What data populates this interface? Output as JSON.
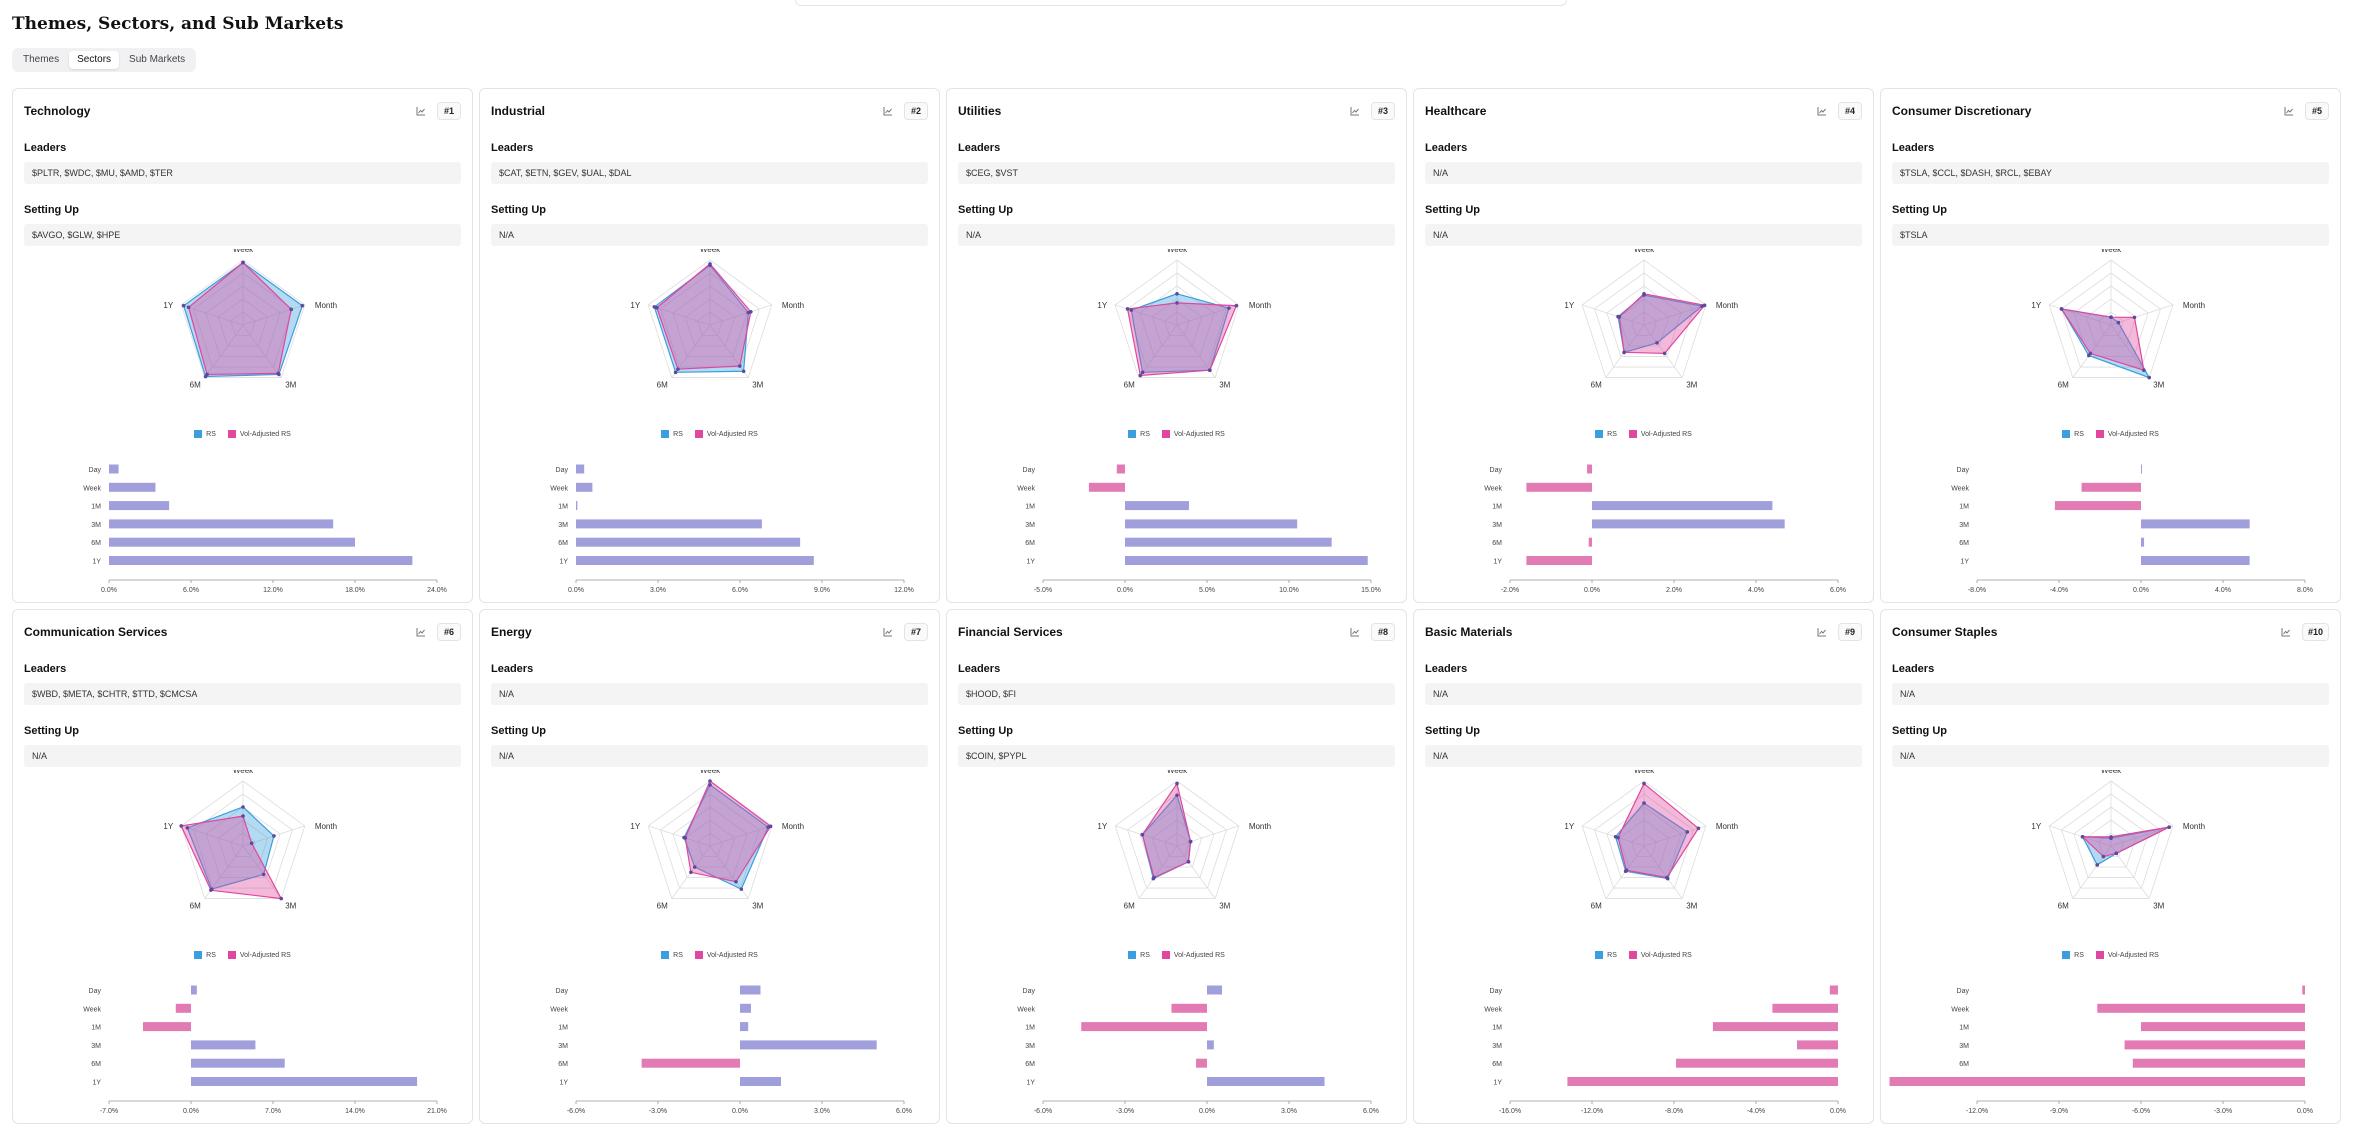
{
  "page": {
    "title": "Themes, Sectors, and Sub Markets",
    "tabs": [
      "Themes",
      "Sectors",
      "Sub Markets"
    ],
    "active_tab": "Sectors"
  },
  "labels": {
    "leaders": "Leaders",
    "setting_up": "Setting Up"
  },
  "legend": {
    "rs": "RS",
    "vol": "Vol-Adjusted RS"
  },
  "colors": {
    "rs": "#3b9ede",
    "vol": "#e0479e",
    "overlap": "#9b8fd4",
    "bar_positive": "#a09fdb",
    "bar_negative": "#e27ab4",
    "grid": "#dddddd",
    "card_border": "#e4e4e7"
  },
  "icons": {
    "chart_button": "line-chart-icon"
  },
  "chart_data": [
    {
      "type": "radar+bar",
      "title": "Technology",
      "rank": "#1",
      "leaders": "$PLTR, $WDC, $MU, $AMD, $TER",
      "setting_up": "$AVGO, $GLW, $HPE",
      "radar_axes": [
        "Week",
        "Month",
        "3M",
        "6M",
        "1Y"
      ],
      "radar_series": [
        {
          "name": "RS",
          "values": [
            0.96,
            0.96,
            0.94,
            0.98,
            0.96
          ]
        },
        {
          "name": "Vol-Adjusted RS",
          "values": [
            0.96,
            0.78,
            0.92,
            0.94,
            0.88
          ]
        }
      ],
      "bar_categories": [
        "Day",
        "Week",
        "1M",
        "3M",
        "6M",
        "1Y"
      ],
      "bar_values": [
        0.7,
        3.4,
        4.4,
        16.4,
        18.0,
        22.2
      ],
      "x_ticks": [
        "0.0%",
        "6.0%",
        "12.0%",
        "18.0%",
        "24.0%"
      ],
      "xlim": [
        0,
        24
      ]
    },
    {
      "type": "radar+bar",
      "title": "Industrial",
      "rank": "#2",
      "leaders": "$CAT, $ETN, $GEV, $UAL, $DAL",
      "setting_up": "N/A",
      "radar_axes": [
        "Week",
        "Month",
        "3M",
        "6M",
        "1Y"
      ],
      "radar_series": [
        {
          "name": "RS",
          "values": [
            0.92,
            0.62,
            0.88,
            0.9,
            0.9
          ]
        },
        {
          "name": "Vol-Adjusted RS",
          "values": [
            0.94,
            0.66,
            0.78,
            0.84,
            0.86
          ]
        }
      ],
      "bar_categories": [
        "Day",
        "Week",
        "1M",
        "3M",
        "6M",
        "1Y"
      ],
      "bar_values": [
        0.3,
        0.6,
        0.05,
        6.8,
        8.2,
        8.7
      ],
      "x_ticks": [
        "0.0%",
        "3.0%",
        "6.0%",
        "9.0%",
        "12.0%"
      ],
      "xlim": [
        0,
        12
      ]
    },
    {
      "type": "radar+bar",
      "title": "Utilities",
      "rank": "#3",
      "leaders": "$CEG, $VST",
      "setting_up": "N/A",
      "radar_axes": [
        "Week",
        "Month",
        "3M",
        "6M",
        "1Y"
      ],
      "radar_series": [
        {
          "name": "RS",
          "values": [
            0.48,
            0.84,
            0.86,
            0.9,
            0.74
          ]
        },
        {
          "name": "Vol-Adjusted RS",
          "values": [
            0.34,
            0.96,
            0.86,
            0.96,
            0.8
          ]
        }
      ],
      "bar_categories": [
        "Day",
        "Week",
        "1M",
        "3M",
        "6M",
        "1Y"
      ],
      "bar_values": [
        -0.5,
        -2.2,
        3.9,
        10.5,
        12.6,
        14.8
      ],
      "x_ticks": [
        "-5.0%",
        "0.0%",
        "5.0%",
        "10.0%",
        "15.0%"
      ],
      "xlim": [
        -5,
        15
      ]
    },
    {
      "type": "radar+bar",
      "title": "Healthcare",
      "rank": "#4",
      "leaders": "N/A",
      "setting_up": "N/A",
      "radar_axes": [
        "Week",
        "Month",
        "3M",
        "6M",
        "1Y"
      ],
      "radar_series": [
        {
          "name": "RS",
          "values": [
            0.46,
            0.94,
            0.34,
            0.52,
            0.42
          ]
        },
        {
          "name": "Vol-Adjusted RS",
          "values": [
            0.48,
            0.98,
            0.54,
            0.52,
            0.4
          ]
        }
      ],
      "bar_categories": [
        "Day",
        "Week",
        "1M",
        "3M",
        "6M",
        "1Y"
      ],
      "bar_values": [
        -0.12,
        -1.6,
        4.4,
        4.7,
        -0.08,
        -1.6
      ],
      "x_ticks": [
        "-2.0%",
        "0.0%",
        "2.0%",
        "4.0%",
        "6.0%"
      ],
      "xlim": [
        -2,
        6
      ]
    },
    {
      "type": "radar+bar",
      "title": "Consumer Discretionary",
      "rank": "#5",
      "leaders": "$TSLA, $CCL, $DASH, $RCL, $EBAY",
      "setting_up": "$TSLA",
      "radar_axes": [
        "Week",
        "Month",
        "3M",
        "6M",
        "1Y"
      ],
      "radar_series": [
        {
          "name": "RS",
          "values": [
            0.12,
            0.12,
            1.0,
            0.58,
            0.8
          ]
        },
        {
          "name": "Vol-Adjusted RS",
          "values": [
            0.12,
            0.38,
            0.86,
            0.54,
            0.8
          ]
        }
      ],
      "bar_categories": [
        "Day",
        "Week",
        "1M",
        "3M",
        "6M",
        "1Y"
      ],
      "bar_values": [
        0,
        -2.9,
        -4.2,
        5.3,
        0.15,
        5.3
      ],
      "x_ticks": [
        "-8.0%",
        "-4.0%",
        "0.0%",
        "4.0%",
        "8.0%"
      ],
      "xlim": [
        -8,
        8
      ]
    },
    {
      "type": "radar+bar",
      "title": "Communication Services",
      "rank": "#6",
      "leaders": "$WBD, $META, $CHTR, $TTD, $CMCSA",
      "setting_up": "N/A",
      "radar_axes": [
        "Week",
        "Month",
        "3M",
        "6M",
        "1Y"
      ],
      "radar_series": [
        {
          "name": "RS",
          "values": [
            0.6,
            0.5,
            0.54,
            0.82,
            0.9
          ]
        },
        {
          "name": "Vol-Adjusted RS",
          "values": [
            0.46,
            0.14,
            1.0,
            0.84,
            1.0
          ]
        }
      ],
      "bar_categories": [
        "Day",
        "Week",
        "1M",
        "3M",
        "6M",
        "1Y"
      ],
      "bar_values": [
        0.5,
        -1.3,
        -4.1,
        5.5,
        8.0,
        19.3
      ],
      "x_ticks": [
        "-7.0%",
        "0.0%",
        "7.0%",
        "14.0%",
        "21.0%"
      ],
      "xlim": [
        -7,
        21
      ]
    },
    {
      "type": "radar+bar",
      "title": "Energy",
      "rank": "#7",
      "leaders": "N/A",
      "setting_up": "N/A",
      "radar_axes": [
        "Week",
        "Month",
        "3M",
        "6M",
        "1Y"
      ],
      "radar_series": [
        {
          "name": "RS",
          "values": [
            0.94,
            0.94,
            0.82,
            0.4,
            0.42
          ]
        },
        {
          "name": "Vol-Adjusted RS",
          "values": [
            1.0,
            0.98,
            0.68,
            0.5,
            0.4
          ]
        }
      ],
      "bar_categories": [
        "Day",
        "Week",
        "1M",
        "3M",
        "6M",
        "1Y"
      ],
      "bar_values": [
        0.75,
        0.4,
        0.3,
        5.0,
        -3.6,
        1.5
      ],
      "x_ticks": [
        "-6.0%",
        "-3.0%",
        "0.0%",
        "3.0%",
        "6.0%"
      ],
      "xlim": [
        -6,
        6
      ]
    },
    {
      "type": "radar+bar",
      "title": "Financial Services",
      "rank": "#8",
      "leaders": "$HOOD, $FI",
      "setting_up": "$COIN, $PYPL",
      "radar_axes": [
        "Week",
        "Month",
        "3M",
        "6M",
        "1Y"
      ],
      "radar_series": [
        {
          "name": "RS",
          "values": [
            0.78,
            0.22,
            0.3,
            0.62,
            0.56
          ]
        },
        {
          "name": "Vol-Adjusted RS",
          "values": [
            0.96,
            0.22,
            0.3,
            0.6,
            0.56
          ]
        }
      ],
      "bar_categories": [
        "Day",
        "Week",
        "1M",
        "3M",
        "6M",
        "1Y"
      ],
      "bar_values": [
        0.55,
        -1.3,
        -4.6,
        0.25,
        -0.4,
        4.3
      ],
      "x_ticks": [
        "-6.0%",
        "-3.0%",
        "0.0%",
        "3.0%",
        "6.0%"
      ],
      "xlim": [
        -6,
        6
      ]
    },
    {
      "type": "radar+bar",
      "title": "Basic Materials",
      "rank": "#9",
      "leaders": "N/A",
      "setting_up": "N/A",
      "radar_axes": [
        "Week",
        "Month",
        "3M",
        "6M",
        "1Y"
      ],
      "radar_series": [
        {
          "name": "RS",
          "values": [
            0.66,
            0.7,
            0.62,
            0.48,
            0.46
          ]
        },
        {
          "name": "Vol-Adjusted RS",
          "values": [
            0.96,
            0.88,
            0.6,
            0.46,
            0.42
          ]
        }
      ],
      "bar_categories": [
        "Day",
        "Week",
        "1M",
        "3M",
        "6M",
        "1Y"
      ],
      "bar_values": [
        -0.4,
        -3.2,
        -6.1,
        -2.0,
        -7.9,
        -13.2
      ],
      "x_ticks": [
        "-16.0%",
        "-12.0%",
        "-8.0%",
        "-4.0%",
        "0.0%"
      ],
      "xlim": [
        -16,
        0
      ]
    },
    {
      "type": "radar+bar",
      "title": "Consumer Staples",
      "rank": "#10",
      "leaders": "N/A",
      "setting_up": "N/A",
      "radar_axes": [
        "Week",
        "Month",
        "3M",
        "6M",
        "1Y"
      ],
      "radar_series": [
        {
          "name": "RS",
          "values": [
            0.12,
            0.94,
            0.14,
            0.36,
            0.46
          ]
        },
        {
          "name": "Vol-Adjusted RS",
          "values": [
            0.14,
            0.94,
            0.14,
            0.2,
            0.46
          ]
        }
      ],
      "bar_categories": [
        "Day",
        "Week",
        "1M",
        "3M",
        "6M",
        "1Y"
      ],
      "bar_values": [
        -0.1,
        -7.6,
        -6.0,
        -6.6,
        -6.3,
        -15.2
      ],
      "x_ticks": [
        "-12.0%",
        "-9.0%",
        "-6.0%",
        "-3.0%",
        "0.0%"
      ],
      "xlim": [
        -12,
        0
      ]
    }
  ]
}
